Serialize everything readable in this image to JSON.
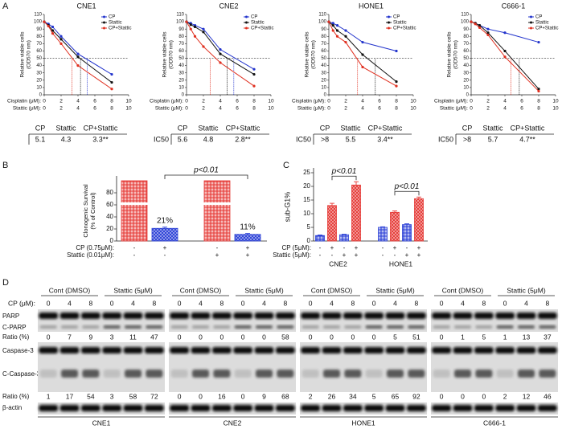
{
  "panel_labels": [
    "A",
    "B",
    "C",
    "D"
  ],
  "chart_data": [
    {
      "type": "line",
      "title": "CNE1",
      "ylabel": [
        "Relative viable cells",
        "(OD570 nm)"
      ],
      "x_rows": [
        "Cisplatin (μM):",
        "Stattic (μM):"
      ],
      "x": [
        0,
        0.5,
        1,
        2,
        4,
        8
      ],
      "xlim": [
        0,
        10
      ],
      "xticks": [
        0,
        2,
        4,
        6,
        8,
        10
      ],
      "ylim": [
        0,
        110
      ],
      "yticks": [
        0,
        10,
        20,
        30,
        40,
        50,
        60,
        70,
        80,
        90,
        100,
        110
      ],
      "reference_lines": {
        "y": 50,
        "x": [
          5.1,
          4.3,
          3.3
        ]
      },
      "series": [
        {
          "name": "CP",
          "color": "#2233cc",
          "values": [
            100,
            97,
            93,
            80,
            56,
            28
          ]
        },
        {
          "name": "Stattic",
          "color": "#111111",
          "values": [
            100,
            95,
            88,
            76,
            52,
            17
          ]
        },
        {
          "name": "CP+Stattic",
          "color": "#e03020",
          "values": [
            100,
            94,
            84,
            70,
            40,
            8
          ]
        }
      ]
    },
    {
      "type": "line",
      "title": "CNE2",
      "ylabel": [
        "Relative viable cells",
        "(OD570 nm)"
      ],
      "x_rows": [
        "Cisplatin (μM):",
        "Stattic (μM):"
      ],
      "x": [
        0,
        0.5,
        1,
        2,
        4,
        8
      ],
      "xlim": [
        0,
        10
      ],
      "xticks": [
        0,
        2,
        4,
        6,
        8,
        10
      ],
      "ylim": [
        0,
        110
      ],
      "yticks": [
        0,
        10,
        20,
        30,
        40,
        50,
        60,
        70,
        80,
        90,
        100,
        110
      ],
      "reference_lines": {
        "y": 50,
        "x": [
          5.6,
          4.8,
          2.8
        ]
      },
      "series": [
        {
          "name": "CP",
          "color": "#2233cc",
          "values": [
            100,
            98,
            95,
            90,
            62,
            35
          ]
        },
        {
          "name": "Stattic",
          "color": "#111111",
          "values": [
            100,
            96,
            93,
            86,
            56,
            28
          ]
        },
        {
          "name": "CP+Stattic",
          "color": "#e03020",
          "values": [
            100,
            90,
            80,
            66,
            44,
            12
          ]
        }
      ]
    },
    {
      "type": "line",
      "title": "HONE1",
      "ylabel": [
        "Relative viable cells",
        "(OD570 nm)"
      ],
      "x_rows": [
        "Cisplatin (μM):",
        "Stattic (μM):"
      ],
      "x": [
        0,
        0.5,
        1,
        2,
        4,
        8
      ],
      "xlim": [
        0,
        10
      ],
      "xticks": [
        0,
        2,
        4,
        6,
        8,
        10
      ],
      "ylim": [
        0,
        110
      ],
      "yticks": [
        0,
        10,
        20,
        30,
        40,
        50,
        60,
        70,
        80,
        90,
        100,
        110
      ],
      "reference_lines": {
        "y": 50,
        "x": [
          null,
          5.5,
          3.4
        ]
      },
      "series": [
        {
          "name": "CP",
          "color": "#2233cc",
          "values": [
            100,
            98,
            95,
            88,
            72,
            60
          ]
        },
        {
          "name": "Stattic",
          "color": "#111111",
          "values": [
            100,
            95,
            88,
            80,
            55,
            18
          ]
        },
        {
          "name": "CP+Stattic",
          "color": "#e03020",
          "values": [
            100,
            88,
            80,
            72,
            38,
            12
          ]
        }
      ]
    },
    {
      "type": "line",
      "title": "C666-1",
      "ylabel": [
        "Relative viable cells",
        "(OD570 nm)"
      ],
      "x_rows": [
        "Cisplatin (μM):",
        "Stattic (μM):"
      ],
      "x": [
        0,
        0.5,
        1,
        2,
        4,
        8
      ],
      "xlim": [
        0,
        10
      ],
      "xticks": [
        0,
        2,
        4,
        6,
        8,
        10
      ],
      "ylim": [
        0,
        110
      ],
      "yticks": [
        0,
        10,
        20,
        30,
        40,
        50,
        60,
        70,
        80,
        90,
        100,
        110
      ],
      "reference_lines": {
        "y": 50,
        "x": [
          null,
          5.7,
          4.7
        ]
      },
      "series": [
        {
          "name": "CP",
          "color": "#2233cc",
          "values": [
            100,
            98,
            95,
            90,
            85,
            72
          ]
        },
        {
          "name": "Stattic",
          "color": "#111111",
          "values": [
            100,
            98,
            95,
            85,
            60,
            8
          ]
        },
        {
          "name": "CP+Stattic",
          "color": "#e03020",
          "values": [
            100,
            97,
            92,
            82,
            52,
            5
          ]
        }
      ]
    },
    {
      "type": "bar",
      "ylabel": [
        "Clonogenic Survival",
        "(% of Control)"
      ],
      "values": [
        100,
        21,
        100,
        11
      ],
      "errors": [
        0,
        2,
        0,
        1.5
      ],
      "value_labels": [
        null,
        "21%",
        null,
        "11%"
      ],
      "colors": [
        "#e53935",
        "#2a3fd6",
        "#e53935",
        "#2a3fd6"
      ],
      "ylim": [
        0,
        100
      ],
      "yticks": [
        0,
        20,
        40,
        60,
        80
      ],
      "axis_break": 62,
      "rows": [
        {
          "label": "CP (0.75μM):",
          "values": [
            "-",
            "+",
            "-",
            "+"
          ]
        },
        {
          "label": "Stattic (0.01μM):",
          "values": [
            "-",
            "-",
            "+",
            "+"
          ]
        }
      ],
      "annotations": [
        {
          "text": "p<0.01",
          "from": 1,
          "to": 3
        }
      ]
    },
    {
      "type": "bar",
      "ylabel": [
        "sub-G1%"
      ],
      "values": [
        2,
        13,
        2.3,
        20.5,
        5,
        10.5,
        6,
        15.5
      ],
      "errors": [
        0.2,
        0.8,
        0.2,
        1.2,
        0.2,
        0.5,
        0.3,
        0.6
      ],
      "colors": [
        "#2a3fd6",
        "#e53935",
        "#2a3fd6",
        "#e53935",
        "#2a3fd6",
        "#e53935",
        "#2a3fd6",
        "#e53935"
      ],
      "ylim": [
        0,
        25
      ],
      "yticks": [
        0,
        5,
        10,
        15,
        20,
        25
      ],
      "rows": [
        {
          "label": "CP (5μM):",
          "values": [
            "-",
            "+",
            "-",
            "+",
            "-",
            "+",
            "-",
            "+"
          ]
        },
        {
          "label": "Stattic (5μM):",
          "values": [
            "-",
            "-",
            "+",
            "+",
            "-",
            "-",
            "+",
            "+"
          ]
        }
      ],
      "group_labels": [
        "CNE2",
        "HONE1"
      ],
      "annotations": [
        {
          "text": "p<0.01",
          "from": 1,
          "to": 3
        },
        {
          "text": "p<0.01",
          "from": 5,
          "to": 7
        }
      ]
    }
  ],
  "ic50": [
    {
      "columns": [
        "CP",
        "Stattic",
        "CP+Stattic"
      ],
      "values": [
        5.1,
        4.3,
        "3.3**"
      ]
    },
    {
      "label": "IC50",
      "columns": [
        "CP",
        "Stattic",
        "CP+Stattic"
      ],
      "values": [
        5.6,
        4.8,
        "2.8**"
      ]
    },
    {
      "label": "IC50",
      "columns": [
        "CP",
        "Stattic",
        "CP+Stattic"
      ],
      "values": [
        ">8",
        5.5,
        "3.4**"
      ]
    },
    {
      "label": "IC50",
      "columns": [
        "CP",
        "Stattic",
        "CP+Stattic"
      ],
      "values": [
        ">8",
        5.7,
        "4.7**"
      ]
    }
  ],
  "blot": {
    "cp_label": "CP (μM):",
    "row_labels": [
      "PARP",
      "C-PARP",
      "Ratio (%)",
      "Caspase-3",
      "C-Caspase-3",
      "Ratio (%)",
      "β-actin"
    ],
    "groups": [
      {
        "name": "CNE1",
        "treatments": [
          "Cont (DMSO)",
          "Stattic (5μM)"
        ],
        "doses": [
          0,
          4,
          8,
          0,
          4,
          8
        ],
        "parp_ratio": [
          0,
          7,
          9,
          3,
          11,
          47
        ],
        "casp_ratio": [
          1,
          17,
          54,
          3,
          58,
          72
        ]
      },
      {
        "name": "CNE2",
        "treatments": [
          "Cont (DMSO)",
          "Stattic (5μM)"
        ],
        "doses": [
          0,
          4,
          8,
          0,
          4,
          8
        ],
        "parp_ratio": [
          0,
          0,
          0,
          0,
          0,
          58
        ],
        "casp_ratio": [
          0,
          0,
          16,
          0,
          9,
          68
        ]
      },
      {
        "name": "HONE1",
        "treatments": [
          "Cont (DMSO)",
          "Stattic (5μM)"
        ],
        "doses": [
          0,
          4,
          8,
          0,
          4,
          8
        ],
        "parp_ratio": [
          0,
          0,
          0,
          0,
          5,
          51
        ],
        "casp_ratio": [
          2,
          26,
          34,
          5,
          65,
          92
        ]
      },
      {
        "name": "C666-1",
        "treatments": [
          "Cont (DMSO)",
          "Stattic (5μM)"
        ],
        "doses": [
          0,
          4,
          8,
          0,
          4,
          8
        ],
        "parp_ratio": [
          0,
          1,
          5,
          1,
          13,
          37
        ],
        "casp_ratio": [
          0,
          0,
          0,
          2,
          12,
          46
        ]
      }
    ]
  }
}
